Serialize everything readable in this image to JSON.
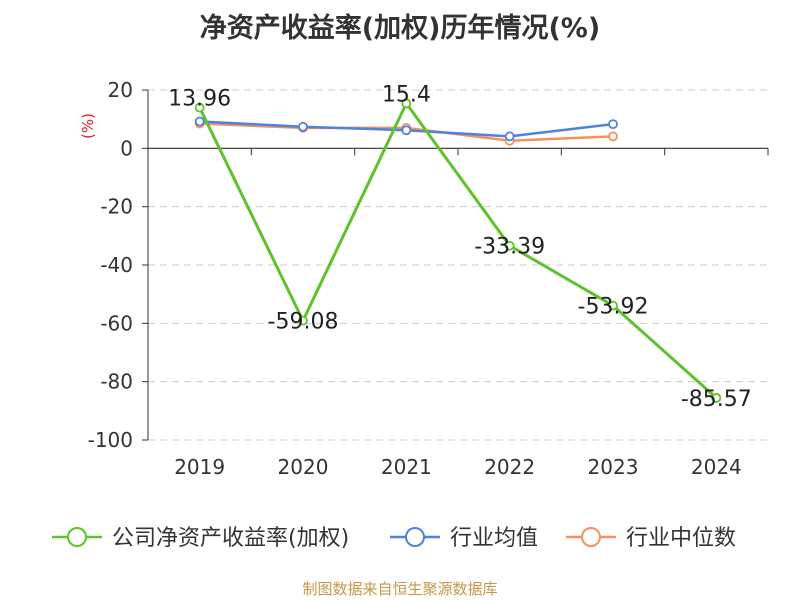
{
  "title": "净资产收益率(加权)历年情况(%)",
  "source": "制图数据来自恒生聚源数据库",
  "chart_data": {
    "type": "line",
    "title": "净资产收益率(加权)历年情况(%)",
    "ylabel": "(%)",
    "xlabel": "",
    "categories": [
      "2019",
      "2020",
      "2021",
      "2022",
      "2023",
      "2024"
    ],
    "ylim": [
      -100,
      20
    ],
    "yticks": [
      20,
      0,
      -20,
      -40,
      -60,
      -80,
      -100
    ],
    "grid": true,
    "legend_position": "bottom",
    "series": [
      {
        "name": "公司净资产收益率(加权)",
        "color": "#5ec22b",
        "values": [
          13.96,
          -59.08,
          15.4,
          -33.39,
          -53.92,
          -85.57
        ],
        "labels": [
          "13.96",
          "-59.08",
          "15.4",
          "-33.39",
          "-53.92",
          "-85.57"
        ]
      },
      {
        "name": "行业均值",
        "color": "#4f81e0",
        "values": [
          9.2,
          7.4,
          6.2,
          4.1,
          8.3,
          null
        ]
      },
      {
        "name": "行业中位数",
        "color": "#f7915a",
        "values": [
          8.5,
          7.0,
          7.0,
          2.6,
          4.1,
          null
        ]
      }
    ]
  }
}
